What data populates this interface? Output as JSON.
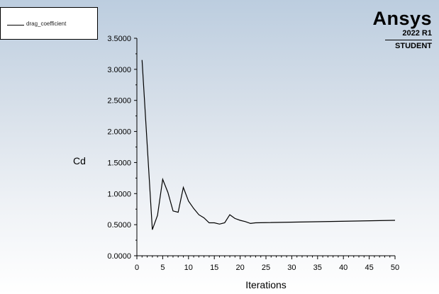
{
  "legend": {
    "label": "drag_coefficient"
  },
  "watermark": {
    "brand": "Ansys",
    "version": "2022 R1",
    "edition": "STUDENT"
  },
  "colors": {
    "line": "#000000",
    "background_top": "#bccddf",
    "background_bottom": "#ffffff"
  },
  "chart_data": {
    "type": "line",
    "title": "",
    "xlabel": "Iterations",
    "ylabel": "Cd",
    "xlim": [
      0,
      50
    ],
    "ylim": [
      0,
      3.5
    ],
    "x_ticks": [
      "0",
      "5",
      "10",
      "15",
      "20",
      "25",
      "30",
      "35",
      "40",
      "45",
      "50"
    ],
    "y_ticks": [
      "0.0000",
      "0.5000",
      "1.0000",
      "1.5000",
      "2.0000",
      "2.5000",
      "3.0000",
      "3.5000"
    ],
    "grid": false,
    "legend_position": "top-left",
    "series": [
      {
        "name": "drag_coefficient",
        "x": [
          1,
          3,
          4,
          5,
          6,
          7,
          8,
          9,
          10,
          11,
          12,
          13,
          14,
          15,
          16,
          17,
          18,
          19,
          20,
          21,
          22,
          23,
          50
        ],
        "y": [
          3.15,
          0.42,
          0.65,
          1.23,
          1.02,
          0.72,
          0.7,
          1.1,
          0.88,
          0.76,
          0.66,
          0.61,
          0.53,
          0.53,
          0.51,
          0.53,
          0.66,
          0.6,
          0.57,
          0.55,
          0.52,
          0.53,
          0.57
        ]
      }
    ]
  }
}
